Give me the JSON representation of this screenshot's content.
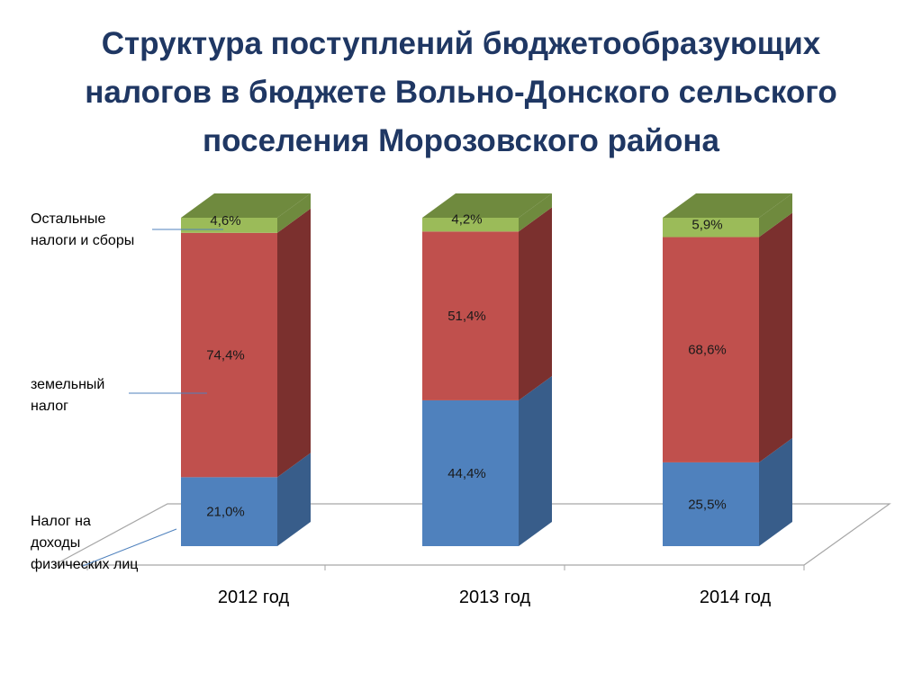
{
  "title_lines": [
    "Структура поступлений бюджетообразующих",
    "налогов в бюджете Вольно-Донского сельского",
    "поселения Морозовского района"
  ],
  "chart_data": {
    "type": "bar",
    "stacked": true,
    "three_d": true,
    "categories": [
      "2012 год",
      "2013 год",
      "2014 год"
    ],
    "series": [
      {
        "name_lines": [
          "Налог на",
          " доходы",
          "физических лиц"
        ],
        "values": [
          21.0,
          44.4,
          25.5
        ],
        "labels": [
          "21,0%",
          "44,4%",
          "25,5%"
        ],
        "color": "#4f81bd",
        "side_color": "#385d8a"
      },
      {
        "name_lines": [
          "земельный",
          "налог"
        ],
        "values": [
          74.4,
          51.4,
          68.6
        ],
        "labels": [
          "74,4%",
          "51,4%",
          "68,6%"
        ],
        "color": "#c0504d",
        "side_color": "#7b302e"
      },
      {
        "name_lines": [
          "Остальные",
          "налоги и сборы"
        ],
        "values": [
          4.6,
          4.2,
          5.9
        ],
        "labels": [
          "4,6%",
          "4,2%",
          "5,9%"
        ],
        "color": "#9bbb59",
        "side_color": "#6f8a3e"
      }
    ],
    "legend_position": "left",
    "axis_lines": false,
    "grid": false
  }
}
